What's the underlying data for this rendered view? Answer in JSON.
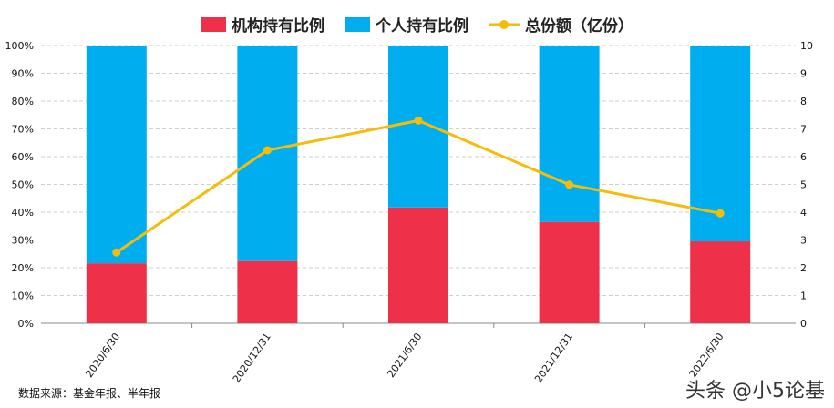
{
  "chart_data": {
    "type": "bar",
    "stacked": true,
    "categories": [
      "2020/6/30",
      "2020/12/31",
      "2021/6/30",
      "2021/12/31",
      "2022/6/30"
    ],
    "series": [
      {
        "name": "机构持有比例",
        "type": "bar",
        "axis": "left",
        "color": "#ee3049",
        "values": [
          21.6,
          22.4,
          41.7,
          36.5,
          29.5
        ]
      },
      {
        "name": "个人持有比例",
        "type": "bar",
        "axis": "left",
        "color": "#00aeef",
        "values": [
          78.4,
          77.6,
          58.3,
          63.5,
          70.5
        ]
      },
      {
        "name": "总份额（亿份）",
        "type": "line",
        "axis": "right",
        "color": "#f7bc0a",
        "values": [
          2.55,
          6.23,
          7.3,
          4.99,
          3.96
        ]
      }
    ],
    "y_left": {
      "min": 0,
      "max": 100,
      "ticks": [
        "0%",
        "10%",
        "20%",
        "30%",
        "40%",
        "50%",
        "60%",
        "70%",
        "80%",
        "90%",
        "100%"
      ]
    },
    "y_right": {
      "min": 0,
      "max": 10,
      "ticks": [
        "0",
        "1",
        "2",
        "3",
        "4",
        "5",
        "6",
        "7",
        "8",
        "9",
        "10"
      ]
    },
    "grid": true,
    "legend_position": "top"
  },
  "source_note": "数据来源：基金年报、半年报",
  "watermark": "头条 @小5论基"
}
